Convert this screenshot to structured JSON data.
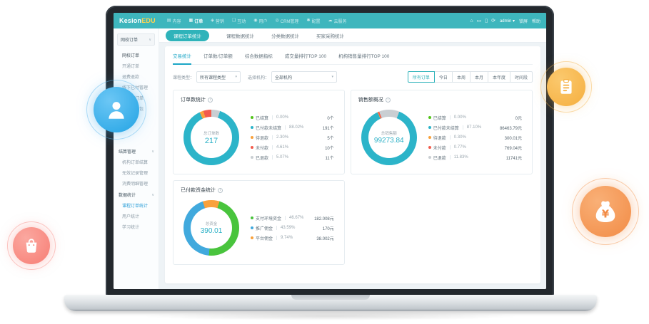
{
  "brand": {
    "name_primary": "Kesion",
    "name_accent": "EDU"
  },
  "topbar": {
    "nav": [
      {
        "label": "内容",
        "icon": "content-icon",
        "glyph": "▤"
      },
      {
        "label": "订单",
        "icon": "orders-icon",
        "glyph": "▦",
        "active": true
      },
      {
        "label": "营销",
        "icon": "marketing-icon",
        "glyph": "◈"
      },
      {
        "label": "互动",
        "icon": "interaction-icon",
        "glyph": "❏"
      },
      {
        "label": "用户",
        "icon": "user-icon",
        "glyph": "◉"
      },
      {
        "label": "CRM管理",
        "icon": "crm-icon",
        "glyph": "◎"
      },
      {
        "label": "配置",
        "icon": "settings-icon",
        "glyph": "✱"
      },
      {
        "label": "云服务",
        "icon": "cloud-icon",
        "glyph": "☁"
      }
    ],
    "right_icons": [
      {
        "name": "home-icon",
        "glyph": "⌂"
      },
      {
        "name": "monitor-icon",
        "glyph": "▭"
      },
      {
        "name": "mobile-icon",
        "glyph": "▯"
      },
      {
        "name": "sync-icon",
        "glyph": "⟳"
      }
    ],
    "user": {
      "name": "admin",
      "caret": "▾"
    },
    "links": [
      "锁屏",
      "帮助"
    ]
  },
  "sidebar": {
    "select": {
      "value": "网校订单",
      "caret": "∨"
    },
    "groups": [
      {
        "header": null,
        "items": [
          {
            "label": "网校订单"
          },
          {
            "label": "开通订单"
          },
          {
            "label": "退费退款"
          },
          {
            "label": "线下已付管理"
          },
          {
            "label": "课程包订单"
          },
          {
            "label": "开通课程包"
          }
        ]
      },
      {
        "header": {
          "label": "结算管理",
          "caret": "∨"
        },
        "items": [
          {
            "label": "机构订单结算"
          },
          {
            "label": "无效记录管理"
          },
          {
            "label": "消费明细管理"
          }
        ]
      },
      {
        "header": {
          "label": "数据统计",
          "caret": "∨"
        },
        "items": [
          {
            "label": "课程订单统计",
            "active": true
          },
          {
            "label": "用户统计"
          },
          {
            "label": "学习统计"
          }
        ]
      }
    ]
  },
  "tabs_primary": [
    {
      "label": "课程订单统计",
      "active": true
    },
    {
      "label": "课程数据统计"
    },
    {
      "label": "分类数据统计"
    },
    {
      "label": "买家采购统计"
    }
  ],
  "tabs_secondary": [
    {
      "label": "交易统计",
      "active": true
    },
    {
      "label": "订单数/订单额"
    },
    {
      "label": "综合数据指标"
    },
    {
      "label": "成交量排行TOP 100"
    },
    {
      "label": "机构销售量排行TOP 100"
    }
  ],
  "filters": {
    "course_type_label": "课程类型：",
    "course_type_value": "所有课程类型",
    "org_label": "选择机构：",
    "org_value": "全部机构",
    "caret": "▾"
  },
  "range_buttons": [
    {
      "label": "所有订单",
      "active": true
    },
    {
      "label": "今日"
    },
    {
      "label": "本周"
    },
    {
      "label": "本月"
    },
    {
      "label": "本年度"
    },
    {
      "label": "时间段"
    }
  ],
  "cards": {
    "orders": {
      "title": "订单数统计",
      "center_label": "总订单数",
      "center_value": "217",
      "legend": [
        {
          "label": "已结算",
          "pct": "0.00%",
          "value": "0个",
          "color": "#52c41a"
        },
        {
          "label": "已付款未结算",
          "pct": "88.02%",
          "value": "191个",
          "color": "#2cb4c9"
        },
        {
          "label": "待退款",
          "pct": "2.30%",
          "value": "5个",
          "color": "#f9a13c"
        },
        {
          "label": "未付款",
          "pct": "4.61%",
          "value": "10个",
          "color": "#f25c4d"
        },
        {
          "label": "已退款",
          "pct": "5.07%",
          "value": "11个",
          "color": "#c9ced2"
        }
      ]
    },
    "sales": {
      "title": "销售额概况",
      "center_label": "总销售额",
      "center_value": "99273.84",
      "legend": [
        {
          "label": "已结算",
          "pct": "0.00%",
          "value": "0元",
          "color": "#52c41a"
        },
        {
          "label": "已付款未结算",
          "pct": "87.10%",
          "value": "86463.79元",
          "color": "#2cb4c9"
        },
        {
          "label": "待退款",
          "pct": "0.30%",
          "value": "300.01元",
          "color": "#f9a13c"
        },
        {
          "label": "未付款",
          "pct": "0.77%",
          "value": "769.04元",
          "color": "#f25c4d"
        },
        {
          "label": "已退款",
          "pct": "11.83%",
          "value": "11741元",
          "color": "#c9ced2"
        }
      ]
    },
    "funds": {
      "title": "已付款资金统计",
      "center_label": "总资金",
      "center_value": "390.01",
      "legend": [
        {
          "label": "支付环境资金",
          "pct": "46.67%",
          "value": "182.008元",
          "color": "#49c43d"
        },
        {
          "label": "推广佣金",
          "pct": "43.59%",
          "value": "170元",
          "color": "#41a9dd"
        },
        {
          "label": "平台佣金",
          "pct": "9.74%",
          "value": "38.002元",
          "color": "#f9a13c"
        }
      ]
    }
  },
  "chart_data": [
    {
      "id": "orders",
      "type": "pie",
      "variant": "donut",
      "title": "订单数统计",
      "center_label": "总订单数",
      "total": 217,
      "unit": "个",
      "rotate": 0,
      "segments": [
        {
          "label": "已退款",
          "value": 11,
          "pct": 5.07,
          "color": "#c9ced2"
        },
        {
          "label": "已付款未结算",
          "value": 191,
          "pct": 88.02,
          "color": "#2cb4c9"
        },
        {
          "label": "已结算",
          "value": 0,
          "pct": 0,
          "color": "#52c41a"
        },
        {
          "label": "待退款",
          "value": 5,
          "pct": 2.3,
          "color": "#f9a13c"
        },
        {
          "label": "未付款",
          "value": 10,
          "pct": 4.61,
          "color": "#f25c4d"
        }
      ]
    },
    {
      "id": "sales",
      "type": "pie",
      "variant": "donut",
      "title": "销售额概况",
      "center_label": "总销售额",
      "total": 99273.84,
      "unit": "元",
      "rotate": -21,
      "segments": [
        {
          "label": "已退款",
          "value": 11741,
          "pct": 11.83,
          "color": "#c9ced2"
        },
        {
          "label": "已付款未结算",
          "value": 86463.79,
          "pct": 87.1,
          "color": "#2cb4c9"
        },
        {
          "label": "已结算",
          "value": 0,
          "pct": 0,
          "color": "#52c41a"
        },
        {
          "label": "待退款",
          "value": 300.01,
          "pct": 0.3,
          "color": "#f9a13c"
        },
        {
          "label": "未付款",
          "value": 769.04,
          "pct": 0.77,
          "color": "#f25c4d"
        }
      ]
    },
    {
      "id": "funds",
      "type": "pie",
      "variant": "donut",
      "title": "已付款资金统计",
      "center_label": "总资金",
      "total": 390.01,
      "unit": "元",
      "rotate": 17,
      "segments": [
        {
          "label": "支付环境资金",
          "value": 182.008,
          "pct": 46.67,
          "color": "#49c43d"
        },
        {
          "label": "推广佣金",
          "value": 170,
          "pct": 43.59,
          "color": "#41a9dd"
        },
        {
          "label": "平台佣金",
          "value": 38.002,
          "pct": 9.74,
          "color": "#f9a13c"
        }
      ]
    }
  ],
  "floating_icons": [
    {
      "name": "person-icon"
    },
    {
      "name": "clipboard-icon"
    },
    {
      "name": "money-bag-icon"
    },
    {
      "name": "shopping-bag-icon"
    }
  ]
}
